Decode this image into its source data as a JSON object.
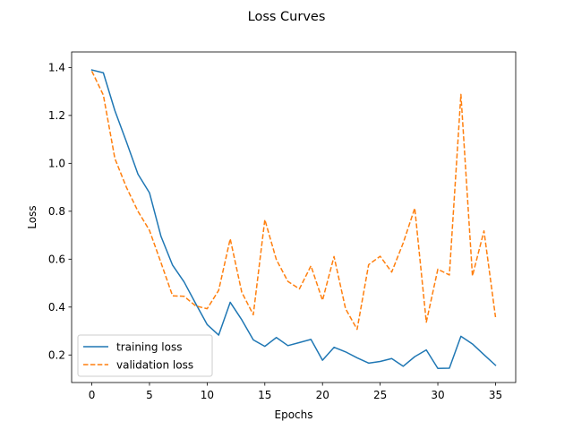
{
  "chart_data": {
    "type": "line",
    "title": "Loss Curves",
    "xlabel": "Epochs",
    "ylabel": "Loss",
    "xlim": [
      -1.75,
      36.75
    ],
    "ylim": [
      0.085,
      1.465
    ],
    "xticks": [
      0,
      5,
      10,
      15,
      20,
      25,
      30,
      35
    ],
    "yticks": [
      0.2,
      0.4,
      0.6,
      0.8,
      1.0,
      1.2,
      1.4
    ],
    "ytick_labels": [
      "0.2",
      "0.4",
      "0.6",
      "0.8",
      "1.0",
      "1.2",
      "1.4"
    ],
    "grid": false,
    "legend_position": "lower-left",
    "x": [
      0,
      1,
      2,
      3,
      4,
      5,
      6,
      7,
      8,
      9,
      10,
      11,
      12,
      13,
      14,
      15,
      16,
      17,
      18,
      19,
      20,
      21,
      22,
      23,
      24,
      25,
      26,
      27,
      28,
      29,
      30,
      31,
      32,
      33,
      34,
      35
    ],
    "series": [
      {
        "name": "training loss",
        "color": "#1f77b4",
        "dash": "solid",
        "values": [
          1.39,
          1.378,
          1.22,
          1.09,
          0.955,
          0.877,
          0.695,
          0.575,
          0.505,
          0.415,
          0.327,
          0.283,
          0.42,
          0.347,
          0.263,
          0.236,
          0.273,
          0.239,
          0.252,
          0.265,
          0.178,
          0.232,
          0.213,
          0.188,
          0.166,
          0.173,
          0.185,
          0.153,
          0.193,
          0.221,
          0.144,
          0.145,
          0.278,
          0.246,
          0.201,
          0.157
        ]
      },
      {
        "name": "validation loss",
        "color": "#ff7f0e",
        "dash": "dashed",
        "values": [
          1.385,
          1.285,
          1.02,
          0.9,
          0.8,
          0.72,
          0.585,
          0.447,
          0.445,
          0.405,
          0.393,
          0.47,
          0.685,
          0.462,
          0.368,
          0.765,
          0.598,
          0.507,
          0.476,
          0.572,
          0.428,
          0.611,
          0.393,
          0.307,
          0.577,
          0.612,
          0.546,
          0.668,
          0.813,
          0.337,
          0.558,
          0.534,
          1.288,
          0.53,
          0.718,
          0.358
        ]
      }
    ]
  }
}
